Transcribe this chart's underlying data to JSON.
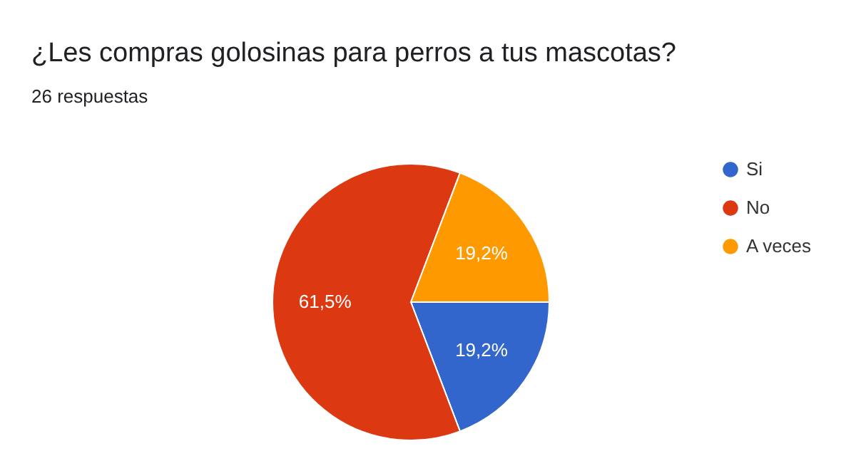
{
  "chart_data": {
    "type": "pie",
    "title": "¿Les compras golosinas para perros a tus mascotas?",
    "subtitle": "26 respuestas",
    "categories": [
      "Si",
      "No",
      "A veces"
    ],
    "values": [
      19.2,
      61.5,
      19.2
    ],
    "colors": [
      "#3366cc",
      "#dc3912",
      "#ff9900"
    ],
    "value_labels": [
      "19,2%",
      "61,5%",
      "19,2%"
    ],
    "legend": "right"
  }
}
